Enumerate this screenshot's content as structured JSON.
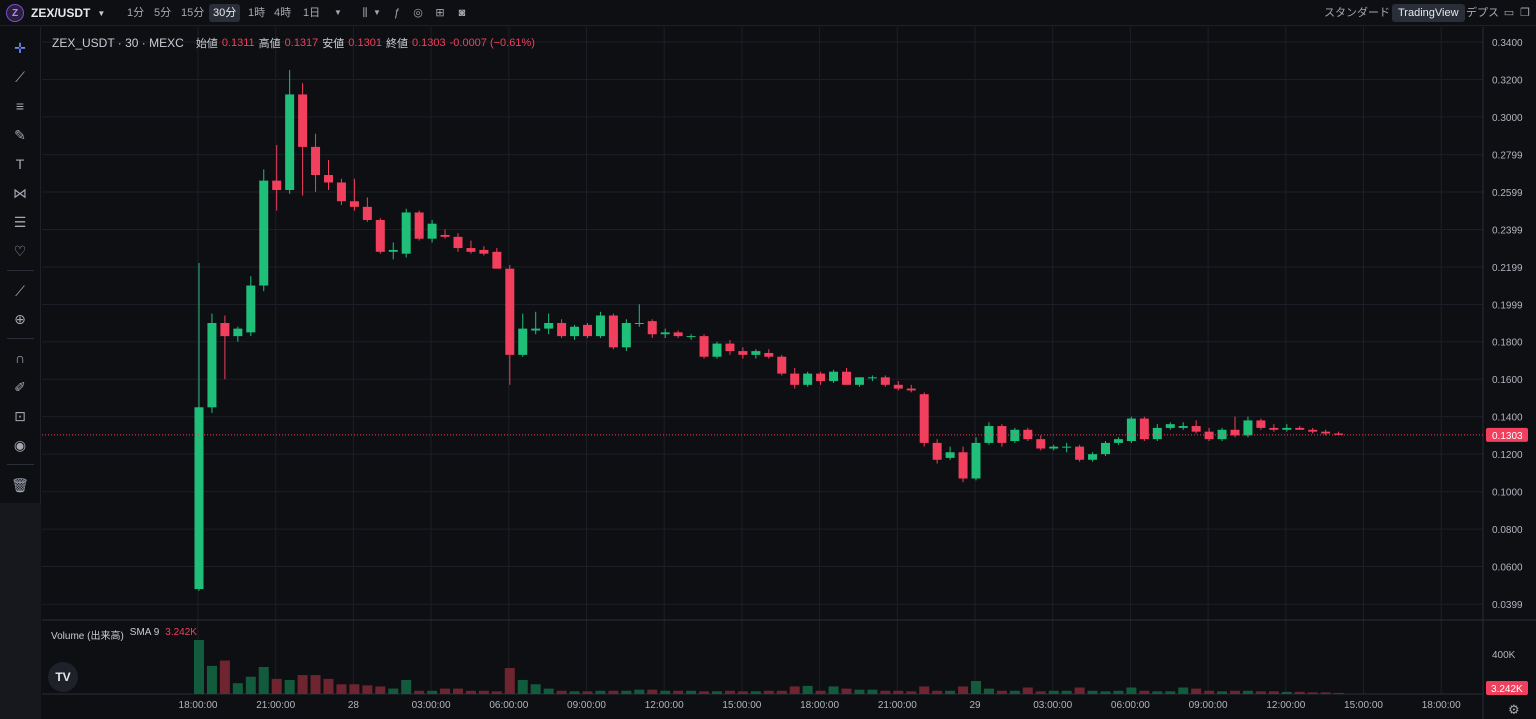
{
  "header": {
    "symbol": "ZEX/USDT",
    "timeframes": [
      "1分",
      "5分",
      "15分",
      "30分",
      "1時",
      "4時",
      "1日"
    ],
    "active_timeframe": "30分",
    "right_items": {
      "standard": "スタンダード",
      "tradingview": "TradingView",
      "depth": "デプス"
    }
  },
  "icons": {
    "left_toolbar": [
      "crosshair-icon",
      "trendline-icon",
      "fib-icon",
      "brush-icon",
      "text-icon",
      "pattern-icon",
      "forecast-icon",
      "heart-icon",
      "ruler-icon",
      "zoom-icon",
      "magnet-icon",
      "lock-draw-icon",
      "lock-icon",
      "eye-icon",
      "trash-icon"
    ]
  },
  "legend": {
    "title": "ZEX_USDT · 30 · MEXC",
    "open_label": "始値",
    "open": "0.1311",
    "high_label": "高値",
    "high": "0.1317",
    "low_label": "安値",
    "low": "0.1301",
    "close_label": "終値",
    "close": "0.1303",
    "change": "-0.0007 (−0.61%)"
  },
  "volume_legend": {
    "label": "Volume (出来高)",
    "sma": "SMA 9",
    "value": "3.242K"
  },
  "colors": {
    "up": "#1fbf7a",
    "down": "#f23f5d",
    "bg": "#0e0f13",
    "grid": "#1c1f27"
  },
  "chart_data": {
    "type": "candlestick",
    "price_ticks": [
      "0.3400",
      "0.3200",
      "0.3000",
      "0.2799",
      "0.2599",
      "0.2399",
      "0.2199",
      "0.1999",
      "0.1800",
      "0.1600",
      "0.1400",
      "0.1200",
      "0.1000",
      "0.0800",
      "0.0600",
      "0.0399"
    ],
    "price_range": [
      0.032,
      0.348
    ],
    "last_price": "0.1303",
    "last_volume": "3.242K",
    "volume_tick": "400K",
    "time_ticks": [
      "18:00:00",
      "21:00:00",
      "28",
      "03:00:00",
      "06:00:00",
      "09:00:00",
      "12:00:00",
      "15:00:00",
      "18:00:00",
      "21:00:00",
      "29",
      "03:00:00",
      "06:00:00",
      "09:00:00",
      "12:00:00",
      "15:00:00",
      "18:00:00"
    ],
    "candles": [
      {
        "o": 0.048,
        "h": 0.222,
        "l": 0.047,
        "c": 0.145
      },
      {
        "o": 0.145,
        "h": 0.195,
        "l": 0.142,
        "c": 0.19
      },
      {
        "o": 0.19,
        "h": 0.194,
        "l": 0.16,
        "c": 0.183
      },
      {
        "o": 0.183,
        "h": 0.188,
        "l": 0.18,
        "c": 0.187
      },
      {
        "o": 0.185,
        "h": 0.215,
        "l": 0.183,
        "c": 0.21
      },
      {
        "o": 0.21,
        "h": 0.272,
        "l": 0.207,
        "c": 0.266
      },
      {
        "o": 0.266,
        "h": 0.285,
        "l": 0.25,
        "c": 0.261
      },
      {
        "o": 0.261,
        "h": 0.325,
        "l": 0.259,
        "c": 0.312
      },
      {
        "o": 0.312,
        "h": 0.318,
        "l": 0.258,
        "c": 0.284
      },
      {
        "o": 0.284,
        "h": 0.291,
        "l": 0.26,
        "c": 0.269
      },
      {
        "o": 0.269,
        "h": 0.277,
        "l": 0.261,
        "c": 0.265
      },
      {
        "o": 0.265,
        "h": 0.267,
        "l": 0.253,
        "c": 0.255
      },
      {
        "o": 0.255,
        "h": 0.267,
        "l": 0.25,
        "c": 0.252
      },
      {
        "o": 0.252,
        "h": 0.257,
        "l": 0.244,
        "c": 0.245
      },
      {
        "o": 0.245,
        "h": 0.246,
        "l": 0.227,
        "c": 0.228
      },
      {
        "o": 0.228,
        "h": 0.233,
        "l": 0.224,
        "c": 0.229
      },
      {
        "o": 0.227,
        "h": 0.251,
        "l": 0.225,
        "c": 0.249
      },
      {
        "o": 0.249,
        "h": 0.25,
        "l": 0.234,
        "c": 0.235
      },
      {
        "o": 0.235,
        "h": 0.245,
        "l": 0.233,
        "c": 0.243
      },
      {
        "o": 0.237,
        "h": 0.24,
        "l": 0.235,
        "c": 0.236
      },
      {
        "o": 0.236,
        "h": 0.238,
        "l": 0.228,
        "c": 0.23
      },
      {
        "o": 0.23,
        "h": 0.234,
        "l": 0.227,
        "c": 0.228
      },
      {
        "o": 0.229,
        "h": 0.231,
        "l": 0.226,
        "c": 0.227
      },
      {
        "o": 0.228,
        "h": 0.23,
        "l": 0.219,
        "c": 0.219
      },
      {
        "o": 0.219,
        "h": 0.221,
        "l": 0.157,
        "c": 0.173
      },
      {
        "o": 0.173,
        "h": 0.195,
        "l": 0.172,
        "c": 0.187
      },
      {
        "o": 0.186,
        "h": 0.196,
        "l": 0.184,
        "c": 0.187
      },
      {
        "o": 0.187,
        "h": 0.195,
        "l": 0.184,
        "c": 0.19
      },
      {
        "o": 0.19,
        "h": 0.192,
        "l": 0.182,
        "c": 0.183
      },
      {
        "o": 0.183,
        "h": 0.189,
        "l": 0.181,
        "c": 0.188
      },
      {
        "o": 0.189,
        "h": 0.19,
        "l": 0.182,
        "c": 0.183
      },
      {
        "o": 0.183,
        "h": 0.196,
        "l": 0.182,
        "c": 0.194
      },
      {
        "o": 0.194,
        "h": 0.195,
        "l": 0.176,
        "c": 0.177
      },
      {
        "o": 0.177,
        "h": 0.192,
        "l": 0.175,
        "c": 0.19
      },
      {
        "o": 0.19,
        "h": 0.2,
        "l": 0.188,
        "c": 0.19
      },
      {
        "o": 0.191,
        "h": 0.192,
        "l": 0.182,
        "c": 0.184
      },
      {
        "o": 0.184,
        "h": 0.187,
        "l": 0.182,
        "c": 0.185
      },
      {
        "o": 0.185,
        "h": 0.186,
        "l": 0.182,
        "c": 0.183
      },
      {
        "o": 0.183,
        "h": 0.184,
        "l": 0.181,
        "c": 0.183
      },
      {
        "o": 0.183,
        "h": 0.184,
        "l": 0.171,
        "c": 0.172
      },
      {
        "o": 0.172,
        "h": 0.18,
        "l": 0.171,
        "c": 0.179
      },
      {
        "o": 0.179,
        "h": 0.181,
        "l": 0.173,
        "c": 0.175
      },
      {
        "o": 0.175,
        "h": 0.177,
        "l": 0.171,
        "c": 0.173
      },
      {
        "o": 0.173,
        "h": 0.176,
        "l": 0.171,
        "c": 0.175
      },
      {
        "o": 0.174,
        "h": 0.176,
        "l": 0.171,
        "c": 0.172
      },
      {
        "o": 0.172,
        "h": 0.173,
        "l": 0.162,
        "c": 0.163
      },
      {
        "o": 0.163,
        "h": 0.166,
        "l": 0.155,
        "c": 0.157
      },
      {
        "o": 0.157,
        "h": 0.164,
        "l": 0.156,
        "c": 0.163
      },
      {
        "o": 0.163,
        "h": 0.164,
        "l": 0.157,
        "c": 0.159
      },
      {
        "o": 0.159,
        "h": 0.165,
        "l": 0.158,
        "c": 0.164
      },
      {
        "o": 0.164,
        "h": 0.166,
        "l": 0.158,
        "c": 0.157
      },
      {
        "o": 0.157,
        "h": 0.161,
        "l": 0.156,
        "c": 0.161
      },
      {
        "o": 0.161,
        "h": 0.162,
        "l": 0.159,
        "c": 0.161
      },
      {
        "o": 0.161,
        "h": 0.162,
        "l": 0.156,
        "c": 0.157
      },
      {
        "o": 0.157,
        "h": 0.159,
        "l": 0.154,
        "c": 0.155
      },
      {
        "o": 0.155,
        "h": 0.157,
        "l": 0.153,
        "c": 0.154
      },
      {
        "o": 0.152,
        "h": 0.153,
        "l": 0.124,
        "c": 0.126
      },
      {
        "o": 0.126,
        "h": 0.128,
        "l": 0.115,
        "c": 0.117
      },
      {
        "o": 0.118,
        "h": 0.124,
        "l": 0.117,
        "c": 0.121
      },
      {
        "o": 0.121,
        "h": 0.124,
        "l": 0.105,
        "c": 0.107
      },
      {
        "o": 0.107,
        "h": 0.129,
        "l": 0.106,
        "c": 0.126
      },
      {
        "o": 0.126,
        "h": 0.137,
        "l": 0.125,
        "c": 0.135
      },
      {
        "o": 0.135,
        "h": 0.136,
        "l": 0.124,
        "c": 0.126
      },
      {
        "o": 0.127,
        "h": 0.134,
        "l": 0.126,
        "c": 0.133
      },
      {
        "o": 0.133,
        "h": 0.134,
        "l": 0.127,
        "c": 0.128
      },
      {
        "o": 0.128,
        "h": 0.13,
        "l": 0.122,
        "c": 0.123
      },
      {
        "o": 0.123,
        "h": 0.125,
        "l": 0.122,
        "c": 0.124
      },
      {
        "o": 0.124,
        "h": 0.126,
        "l": 0.121,
        "c": 0.124
      },
      {
        "o": 0.124,
        "h": 0.125,
        "l": 0.116,
        "c": 0.117
      },
      {
        "o": 0.117,
        "h": 0.121,
        "l": 0.116,
        "c": 0.12
      },
      {
        "o": 0.12,
        "h": 0.127,
        "l": 0.119,
        "c": 0.126
      },
      {
        "o": 0.126,
        "h": 0.129,
        "l": 0.125,
        "c": 0.128
      },
      {
        "o": 0.127,
        "h": 0.14,
        "l": 0.126,
        "c": 0.139
      },
      {
        "o": 0.139,
        "h": 0.14,
        "l": 0.127,
        "c": 0.128
      },
      {
        "o": 0.128,
        "h": 0.136,
        "l": 0.127,
        "c": 0.134
      },
      {
        "o": 0.134,
        "h": 0.137,
        "l": 0.133,
        "c": 0.136
      },
      {
        "o": 0.134,
        "h": 0.137,
        "l": 0.133,
        "c": 0.135
      },
      {
        "o": 0.135,
        "h": 0.138,
        "l": 0.131,
        "c": 0.132
      },
      {
        "o": 0.132,
        "h": 0.134,
        "l": 0.127,
        "c": 0.128
      },
      {
        "o": 0.128,
        "h": 0.134,
        "l": 0.127,
        "c": 0.133
      },
      {
        "o": 0.133,
        "h": 0.14,
        "l": 0.129,
        "c": 0.13
      },
      {
        "o": 0.13,
        "h": 0.14,
        "l": 0.129,
        "c": 0.138
      },
      {
        "o": 0.138,
        "h": 0.139,
        "l": 0.133,
        "c": 0.134
      },
      {
        "o": 0.134,
        "h": 0.136,
        "l": 0.132,
        "c": 0.133
      },
      {
        "o": 0.133,
        "h": 0.136,
        "l": 0.132,
        "c": 0.134
      },
      {
        "o": 0.134,
        "h": 0.135,
        "l": 0.133,
        "c": 0.133
      },
      {
        "o": 0.133,
        "h": 0.134,
        "l": 0.131,
        "c": 0.132
      },
      {
        "o": 0.132,
        "h": 0.133,
        "l": 0.13,
        "c": 0.131
      },
      {
        "o": 0.131,
        "h": 0.132,
        "l": 0.13,
        "c": 0.1303
      }
    ],
    "volumes": [
      1.0,
      0.52,
      0.62,
      0.2,
      0.32,
      0.5,
      0.28,
      0.26,
      0.35,
      0.35,
      0.28,
      0.18,
      0.18,
      0.16,
      0.14,
      0.1,
      0.26,
      0.06,
      0.06,
      0.1,
      0.1,
      0.06,
      0.06,
      0.05,
      0.48,
      0.26,
      0.18,
      0.1,
      0.06,
      0.05,
      0.05,
      0.06,
      0.06,
      0.06,
      0.08,
      0.08,
      0.06,
      0.06,
      0.06,
      0.05,
      0.05,
      0.06,
      0.05,
      0.05,
      0.06,
      0.06,
      0.14,
      0.15,
      0.06,
      0.14,
      0.1,
      0.08,
      0.08,
      0.06,
      0.06,
      0.05,
      0.14,
      0.06,
      0.06,
      0.14,
      0.24,
      0.1,
      0.06,
      0.06,
      0.12,
      0.05,
      0.06,
      0.06,
      0.12,
      0.06,
      0.05,
      0.06,
      0.12,
      0.06,
      0.05,
      0.05,
      0.12,
      0.1,
      0.06,
      0.05,
      0.06,
      0.06,
      0.05,
      0.05,
      0.04,
      0.04,
      0.03,
      0.03,
      0.02
    ]
  }
}
